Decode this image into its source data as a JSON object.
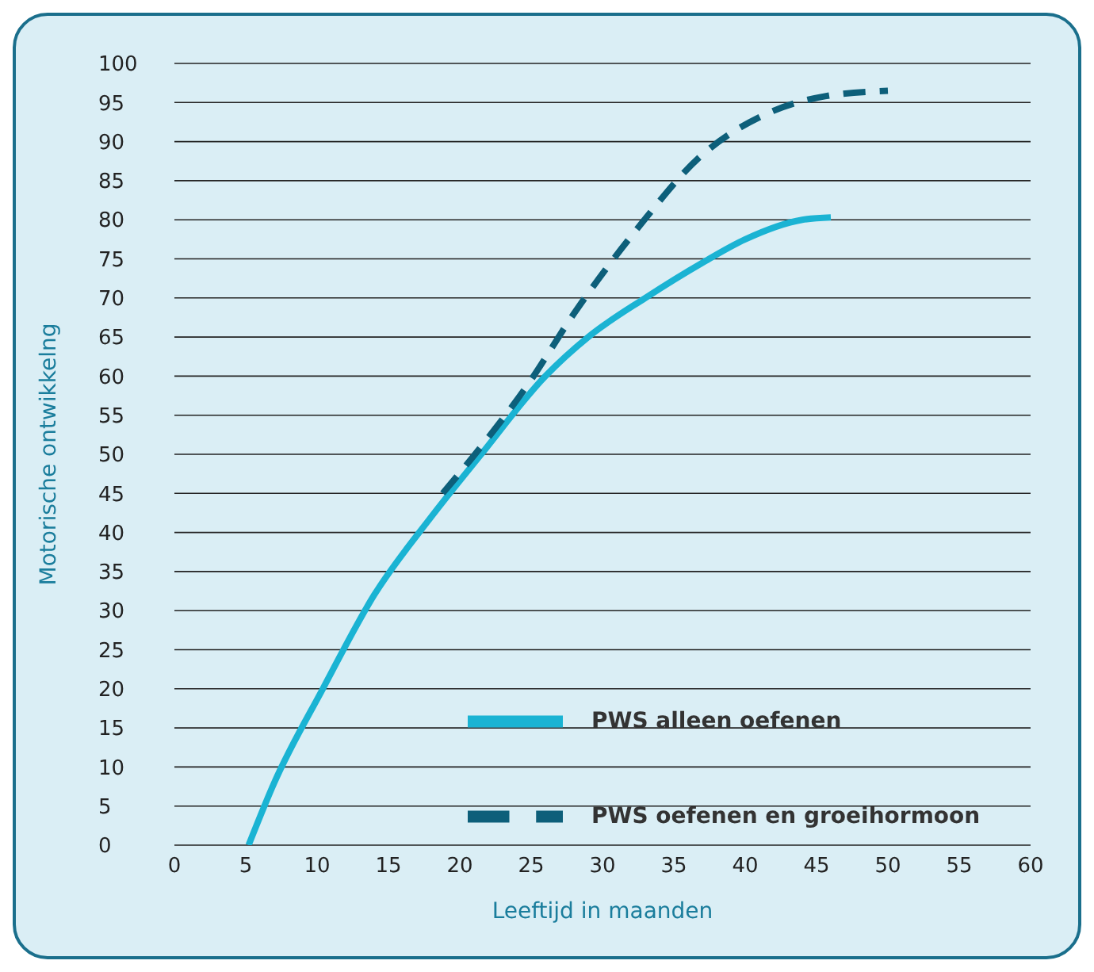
{
  "chart_data": {
    "type": "line",
    "xlabel": "Leeftijd in maanden",
    "ylabel": "Motorische ontwikkelng",
    "xlim": [
      0,
      60
    ],
    "xticks": [
      0,
      5,
      10,
      15,
      20,
      25,
      30,
      35,
      40,
      45,
      50,
      55,
      60
    ],
    "ylim": [
      0,
      100
    ],
    "yticks": [
      0,
      5,
      10,
      15,
      20,
      25,
      30,
      35,
      40,
      45,
      50,
      55,
      60,
      65,
      70,
      75,
      80,
      85,
      90,
      95,
      100
    ],
    "grid": "y",
    "legend": "bottom right",
    "marker": "none",
    "series": [
      {
        "name": "PWS alleen oefenen",
        "color": "#1ab3d3",
        "line_style": "solid",
        "x": [
          5.2,
          7,
          10.4,
          14,
          18,
          21.5,
          26,
          29,
          33,
          37,
          40,
          44,
          46
        ],
        "values": [
          0,
          8,
          20,
          32,
          42,
          50,
          60,
          65,
          70,
          74.5,
          77.5,
          80,
          80.3
        ]
      },
      {
        "name": "PWS oefenen en groeihormoon",
        "color": "#0d5f7a",
        "line_style": "dashed",
        "x": [
          18.8,
          21.5,
          24.8,
          28,
          32.5,
          36.8,
          41.2,
          45.6,
          50
        ],
        "values": [
          45,
          51,
          59,
          68,
          79,
          88,
          93.3,
          95.8,
          96.5
        ]
      }
    ]
  }
}
